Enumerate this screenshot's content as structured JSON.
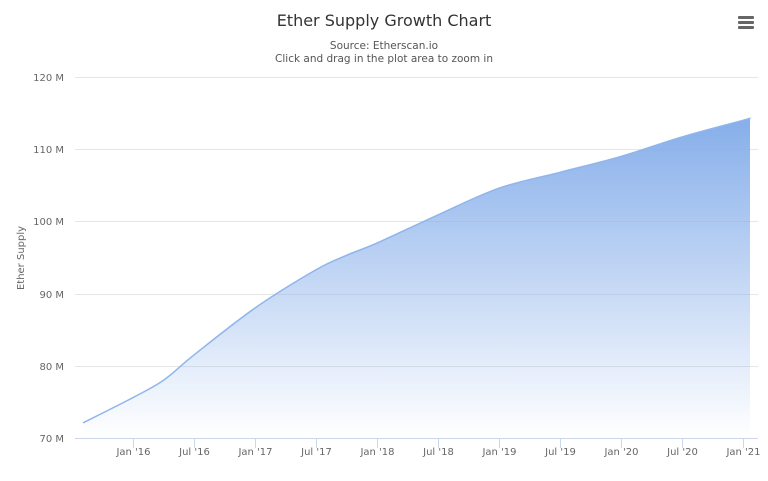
{
  "header": {
    "title": "Ether Supply Growth Chart",
    "subtitle_line1": "Source: Etherscan.io",
    "subtitle_line2": "Click and drag in the plot area to zoom in",
    "menu_icon": "hamburger-menu-icon"
  },
  "colors": {
    "area_top": "#86aeea",
    "area_bottom": "#ffffff",
    "line": "#8fb5ec",
    "grid": "#e6e6e6",
    "text": "#666666"
  },
  "chart_data": {
    "type": "area",
    "title": "Ether Supply Growth Chart",
    "subtitle": "Source: Etherscan.io — Click and drag in the plot area to zoom in",
    "xlabel": "",
    "ylabel": "Ether Supply",
    "ylim": [
      70,
      120
    ],
    "y_unit": "M",
    "y_ticks": [
      "70 M",
      "80 M",
      "90 M",
      "100 M",
      "110 M",
      "120 M"
    ],
    "x_ticks": [
      "Jan '16",
      "Jul '16",
      "Jan '17",
      "Jul '17",
      "Jan '18",
      "Jul '18",
      "Jan '19",
      "Jul '19",
      "Jan '20",
      "Jul '20",
      "Jan '21"
    ],
    "grid": true,
    "legend": "none",
    "series": [
      {
        "name": "Ether Supply",
        "x": [
          "Aug '15",
          "Jan '16",
          "Apr '16",
          "Jul '16",
          "Jan '17",
          "Jul '17",
          "Oct '17",
          "Jan '18",
          "Jul '18",
          "Jan '19",
          "Jul '19",
          "Jan '20",
          "Jul '20",
          "Jan '21",
          "Feb '21"
        ],
        "values": [
          72.1,
          75.6,
          78.0,
          81.5,
          88.0,
          93.3,
          95.3,
          97.0,
          100.9,
          104.6,
          106.8,
          109.0,
          111.7,
          114.0,
          114.3
        ]
      }
    ]
  }
}
